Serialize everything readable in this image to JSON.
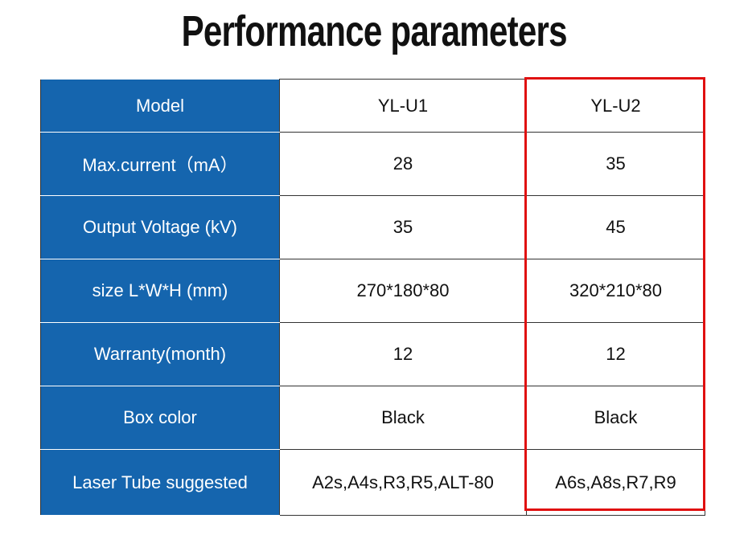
{
  "header": {
    "title": "Performance parameters"
  },
  "table": {
    "rows": [
      [
        "Model",
        "YL-U1",
        "YL-U2"
      ],
      [
        "Max.current（mA）",
        "28",
        "35"
      ],
      [
        "Output Voltage (kV)",
        "35",
        "45"
      ],
      [
        "size L*W*H (mm)",
        "270*180*80",
        "320*210*80"
      ],
      [
        "Warranty(month)",
        "12",
        "12"
      ],
      [
        "Box color",
        "Black",
        "Black"
      ],
      [
        "Laser Tube suggested",
        "A2s,A4s,R3,R5,ALT-80",
        "A6s,A8s,R7,R9"
      ]
    ]
  }
}
